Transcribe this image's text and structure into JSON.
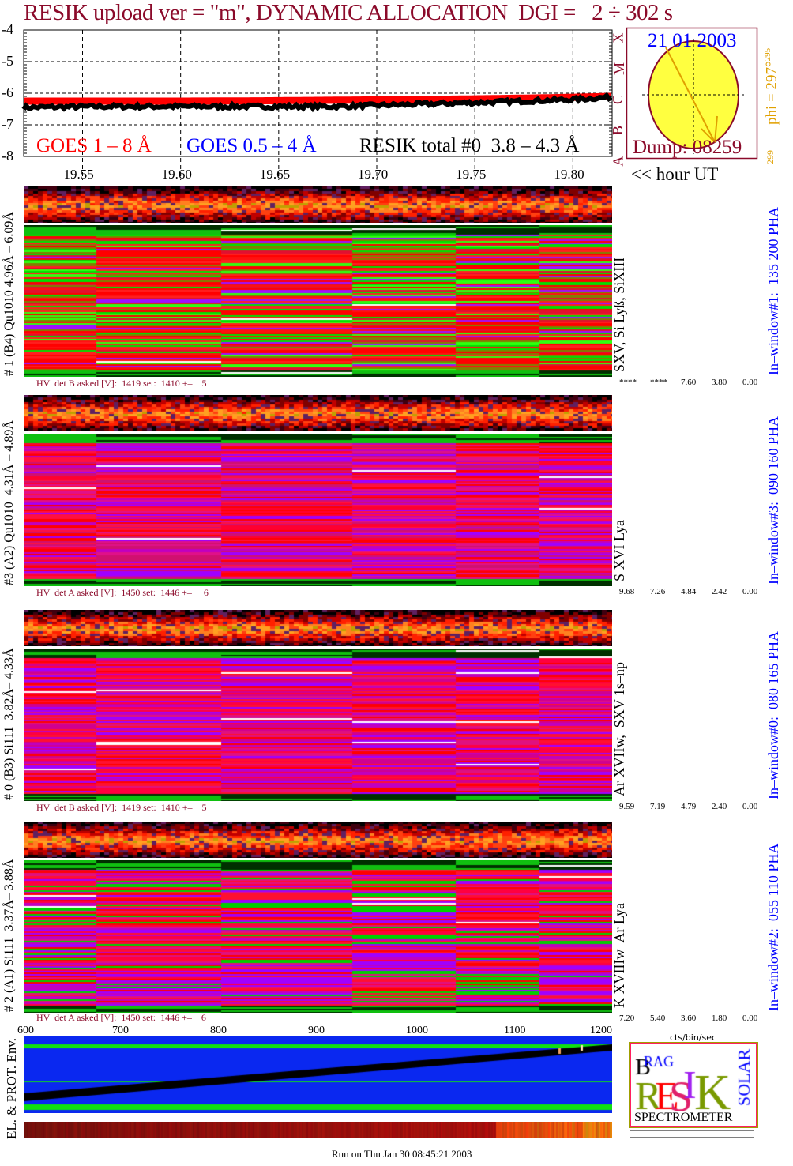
{
  "title": "RESIK upload ver = \"m\", DYNAMIC ALLOCATION  DGI =   2 ÷ 302 s",
  "chart_data": {
    "type": "line",
    "title": "",
    "xlabel": "<< hour UT",
    "ylabel": "",
    "xlim": [
      19.52,
      19.82
    ],
    "ylim": [
      -8,
      -4
    ],
    "x_ticks": [
      "19.55",
      "19.60",
      "19.65",
      "19.70",
      "19.75",
      "19.80"
    ],
    "y_ticks": [
      "-4",
      "-5",
      "-6",
      "-7",
      "-8"
    ],
    "flare_class_labels": [
      "X",
      "M",
      "C",
      "B",
      "A"
    ],
    "grid": true,
    "legend": [
      "GOES 1 – 8 Å",
      "GOES 0.5 – 4 Å",
      "RESIK total #0  3.8 – 4.3 Å"
    ],
    "series": [
      {
        "name": "GOES 1 – 8 Å",
        "color": "#ff0000",
        "x": [
          19.52,
          19.56,
          19.6,
          19.64,
          19.68,
          19.72,
          19.76,
          19.8,
          19.82
        ],
        "values": [
          -6.25,
          -6.25,
          -6.25,
          -6.24,
          -6.22,
          -6.2,
          -6.17,
          -6.13,
          -6.1
        ]
      },
      {
        "name": "RESIK total #0  3.8 – 4.3 Å",
        "color": "#000000",
        "x": [
          19.52,
          19.56,
          19.6,
          19.64,
          19.68,
          19.72,
          19.76,
          19.8,
          19.82
        ],
        "values": [
          -6.45,
          -6.42,
          -6.42,
          -6.42,
          -6.42,
          -6.35,
          -6.28,
          -6.2,
          -6.12
        ]
      }
    ]
  },
  "sun": {
    "date": "21 01 2003",
    "dump": "Dump: 08259",
    "phi": "phi = 297°",
    "phi_sup": "295",
    "phi_low": "299"
  },
  "hour_label": "<< hour UT",
  "panels": [
    {
      "left_label": "# 1 (B4) Qu1010 4.96Å – 6.09Å",
      "line_label": "SXV, Si Lyß, SiXIII",
      "hv": "HV  det B asked [V]:  1419 set:  1410 +–    5",
      "window": "In–window#1:  135 200 PHA",
      "ticks": [
        "****",
        "****",
        "7.60",
        "3.80",
        "0.00"
      ],
      "scheme": "rg"
    },
    {
      "left_label": "#3 (A2) Qu1010  4.31Å – 4.89Å",
      "line_label": "S XVI Lya",
      "hv": "HV  det A asked [V]:  1450 set:  1446 +–     6",
      "window": "In–window#3:  090 160 PHA",
      "ticks": [
        "9.68",
        "7.26",
        "4.84",
        "2.42",
        "0.00"
      ],
      "scheme": "mg"
    },
    {
      "left_label": "# 0 (B3) Si111  3.82Å– 4.33Å",
      "line_label": "Ar XVIIw,  SXV 1s–np",
      "hv": "HV  det B asked [V]:  1419 set:  1410 +–    5",
      "window": "In–window#0:  080 165 PHA",
      "ticks": [
        "9.59",
        "7.19",
        "4.79",
        "2.40",
        "0.00"
      ],
      "scheme": "m"
    },
    {
      "left_label": "# 2 (A1) Si111  3.37Å– 3.88Å",
      "line_label": "K XVIIIw  Ar Lya",
      "hv": "HV  det A asked [V]:  1450 set:  1446 +–    6",
      "window": "In–window#2:  055 110 PHA",
      "ticks": [
        "7.20",
        "5.40",
        "3.60",
        "1.80",
        "0.00"
      ],
      "scheme": "mg2"
    }
  ],
  "bottom_axis": [
    "600",
    "700",
    "800",
    "900",
    "1000",
    "1100",
    "1200"
  ],
  "hist_unit": "cts/bin/sec",
  "env_label": "EL. & PROT. Env.",
  "logo": {
    "text": "BRAG RESIK SOLAR",
    "caption": "SPECTROMETER"
  },
  "footer": "Run on Thu Jan 30 08:45:21 2003",
  "colors": {
    "title": "#8b0a2a",
    "goes_long": "#ff0000",
    "goes_short": "#0000ff",
    "hist_fill": "#b00000",
    "hist_blue": "#0000ff",
    "env_bg": "#0a28f0",
    "env_green": "#10e010",
    "sun": "#ffff40"
  }
}
